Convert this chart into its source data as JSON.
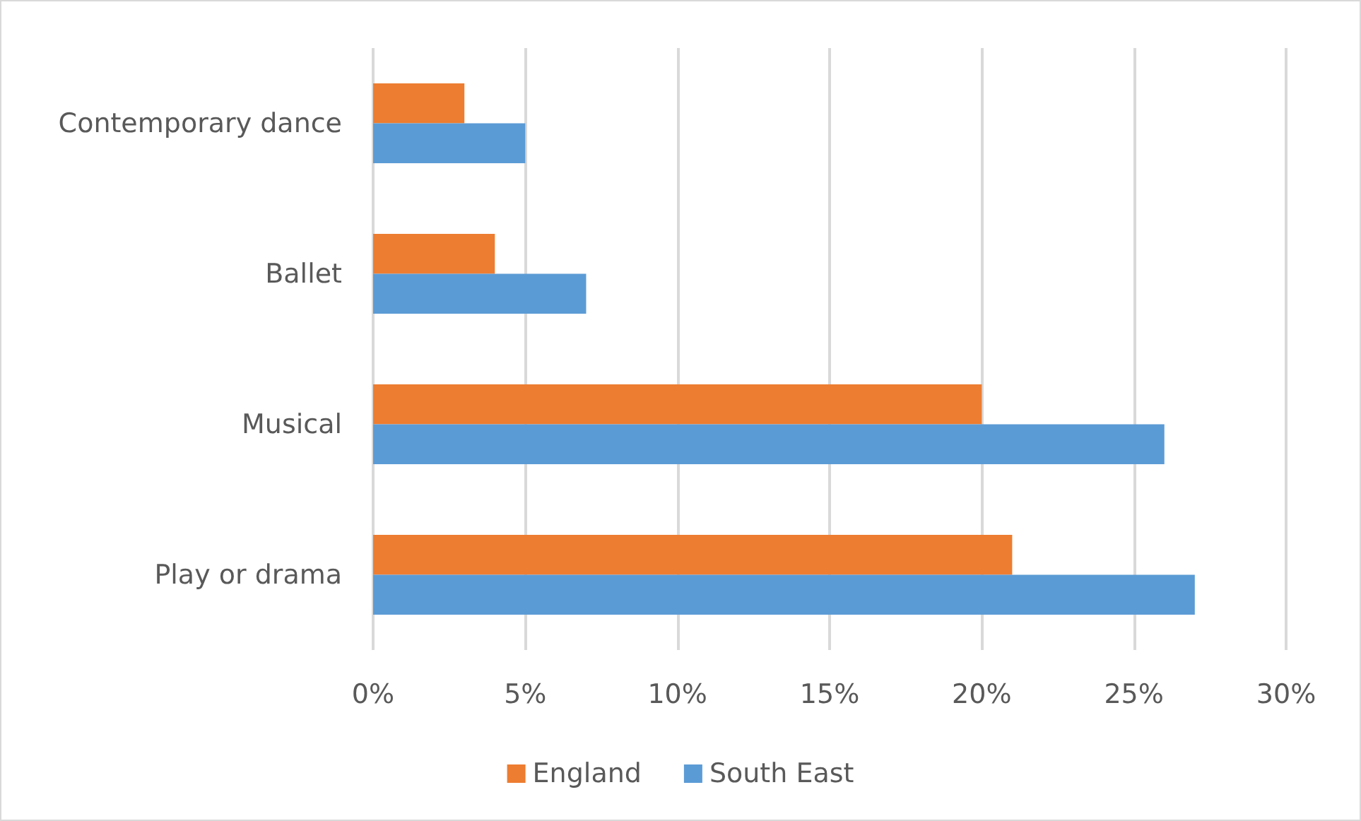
{
  "chart_data": {
    "type": "bar",
    "orientation": "horizontal",
    "categories": [
      "Contemporary dance",
      "Ballet",
      "Musical",
      "Play or drama"
    ],
    "series": [
      {
        "name": "England",
        "color": "#ed7d31",
        "values": [
          3,
          4,
          20,
          21
        ]
      },
      {
        "name": "South East",
        "color": "#5b9bd5",
        "values": [
          5,
          7,
          26,
          27
        ]
      }
    ],
    "xlim": [
      0,
      30
    ],
    "xticks": [
      {
        "value": 0,
        "label": "0%"
      },
      {
        "value": 5,
        "label": "5%"
      },
      {
        "value": 10,
        "label": "10%"
      },
      {
        "value": 15,
        "label": "15%"
      },
      {
        "value": 20,
        "label": "20%"
      },
      {
        "value": 25,
        "label": "25%"
      },
      {
        "value": 30,
        "label": "30%"
      }
    ],
    "grid": "x",
    "legend": "bottom"
  }
}
